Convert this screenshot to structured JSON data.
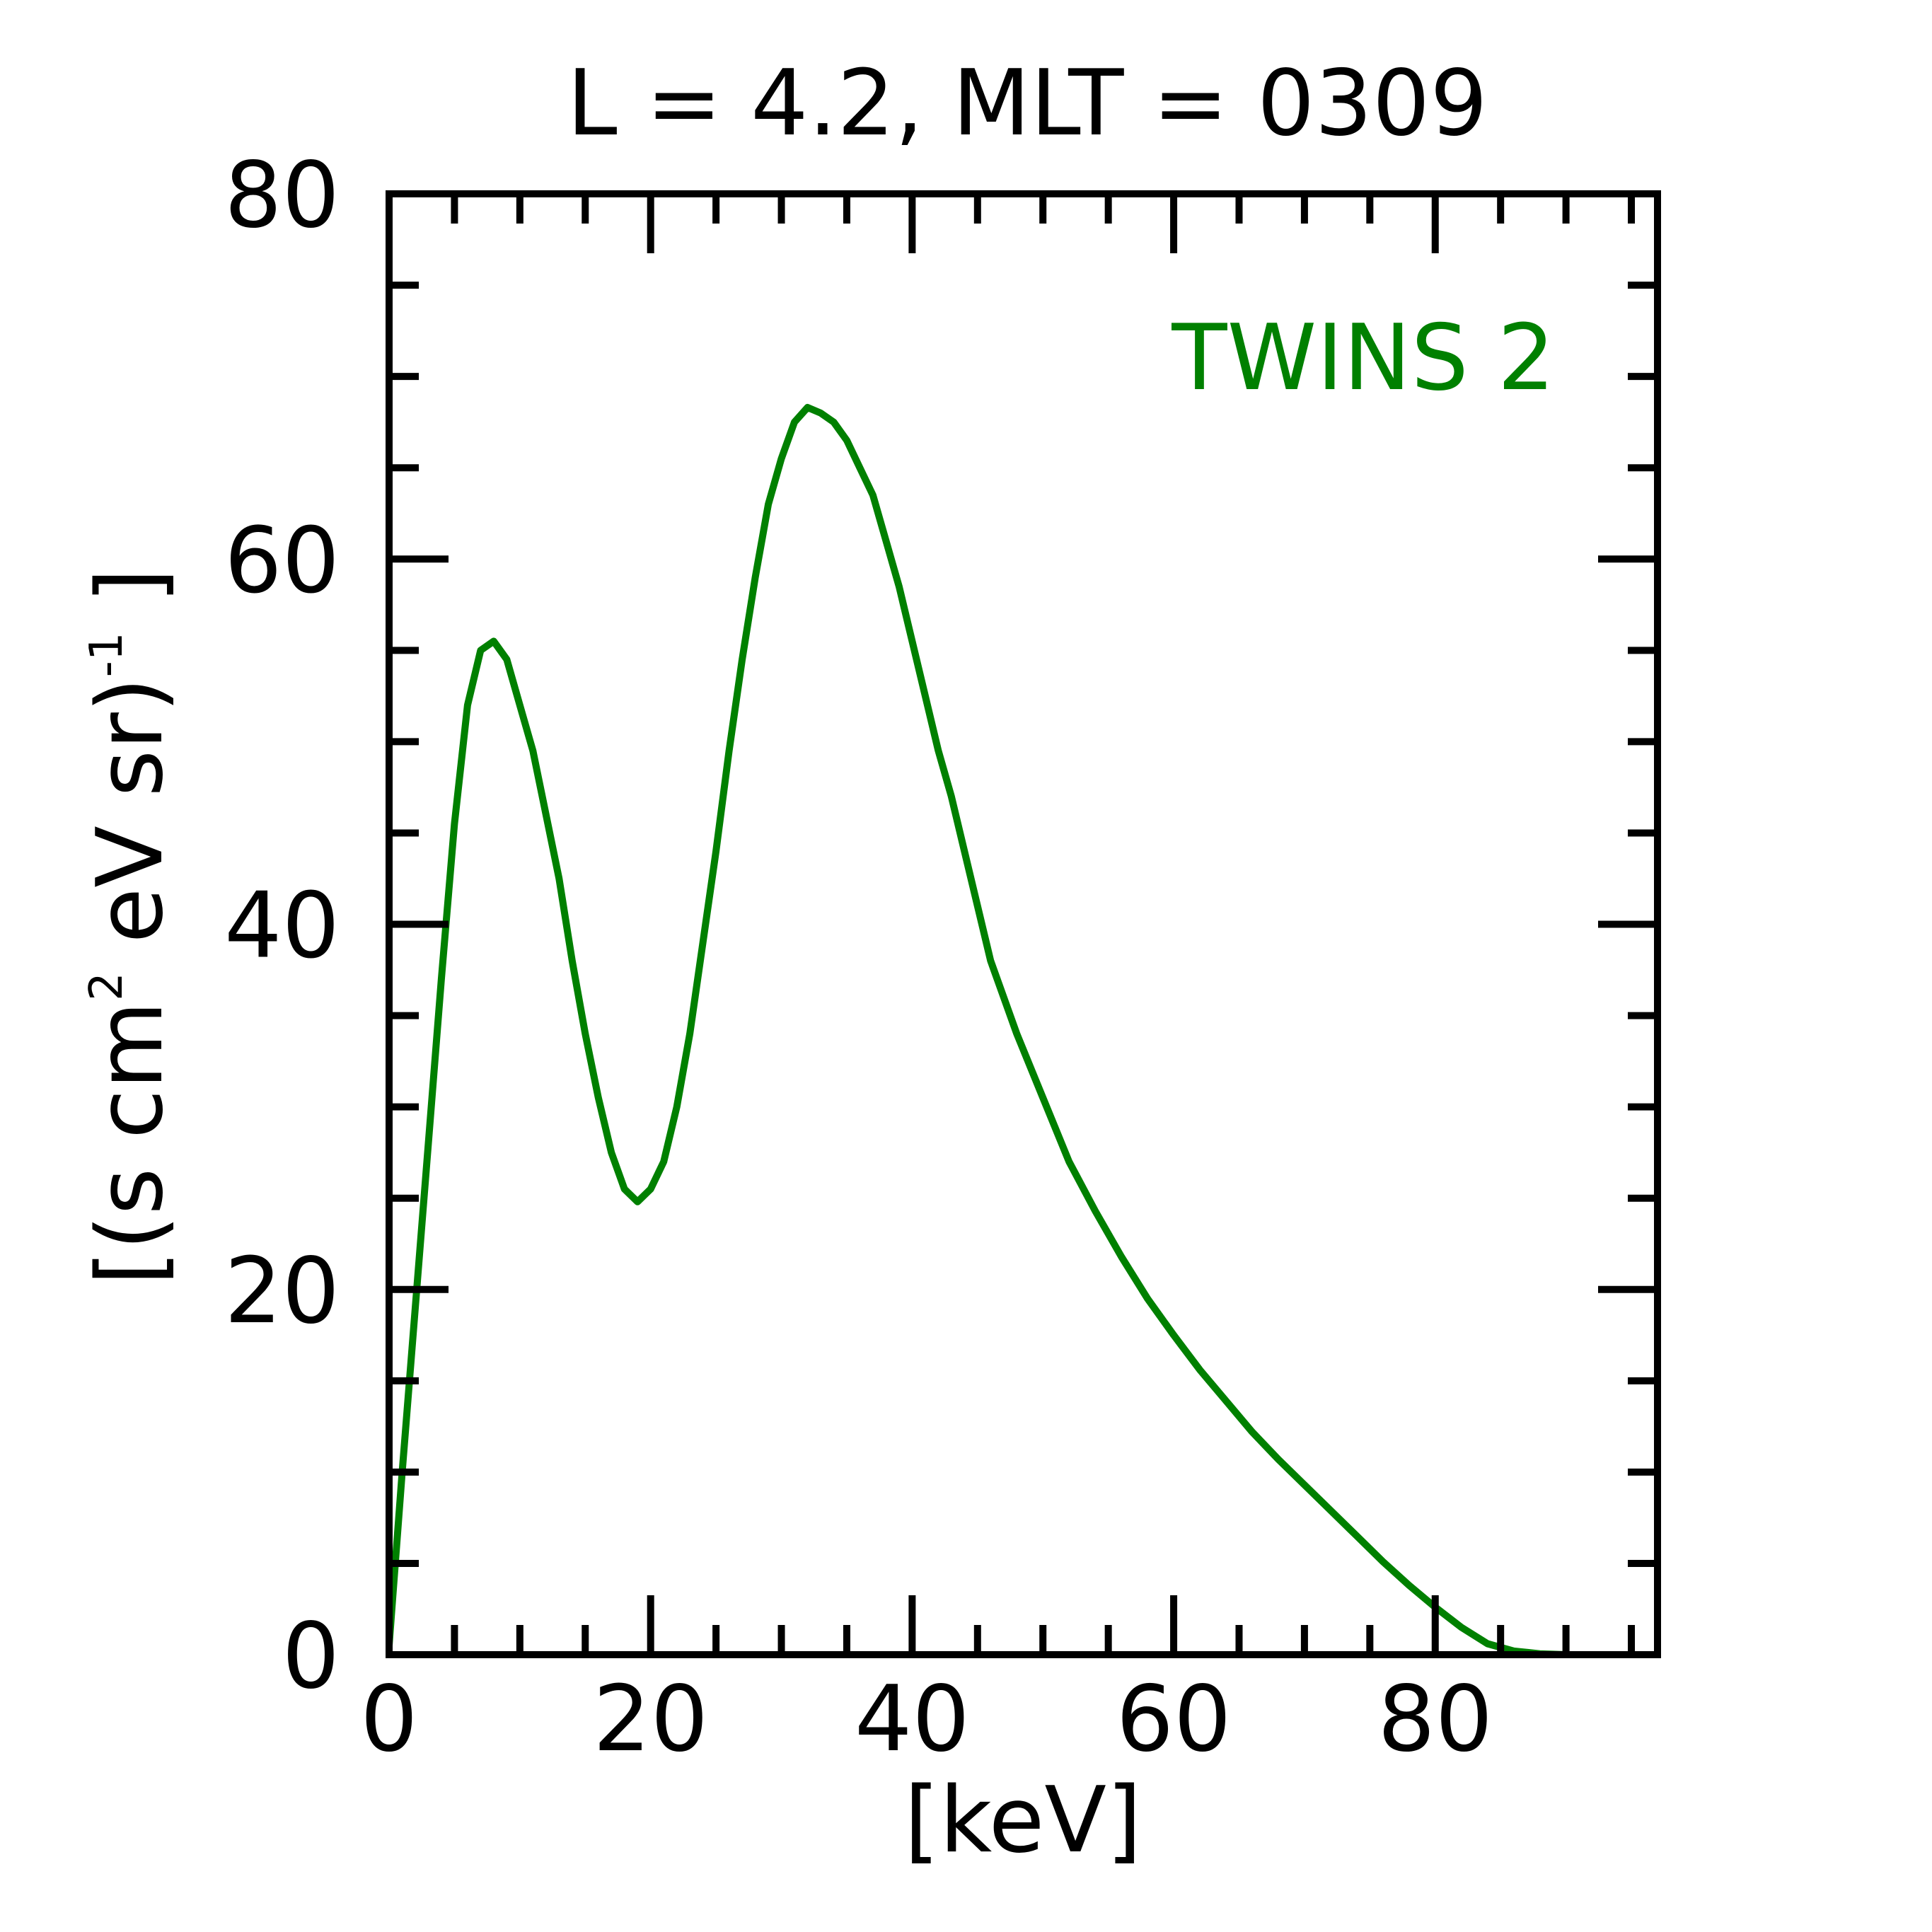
{
  "chart_data": {
    "type": "line",
    "title": "L =  4.2, MLT = 0309",
    "xlabel": "[keV]",
    "ylabel": {
      "prefix": "[(s cm",
      "sup1": "2",
      "middle": " eV sr)",
      "sup2": "-1",
      "suffix": " ]"
    },
    "xlim": [
      0,
      97
    ],
    "ylim": [
      0,
      80
    ],
    "x_ticks": [
      0,
      20,
      40,
      60,
      80
    ],
    "x_tick_labels": [
      "0",
      "20",
      "40",
      "60",
      "80"
    ],
    "y_ticks": [
      0,
      20,
      40,
      60,
      80
    ],
    "y_tick_labels": [
      "0",
      "20",
      "40",
      "60",
      "80"
    ],
    "x_minor_step": 5,
    "y_minor_step": 5,
    "legend_placement": "top-right",
    "series": [
      {
        "name": "TWINS 2",
        "color": "#008000",
        "x": [
          0,
          1,
          2,
          3,
          4,
          5,
          6,
          7,
          8,
          9,
          10,
          11,
          12,
          13,
          14,
          15,
          16,
          17,
          18,
          19,
          20,
          21,
          22,
          23,
          24,
          25,
          26,
          27,
          28,
          29,
          30,
          31,
          32,
          33,
          34,
          35,
          36,
          37,
          38,
          39,
          40,
          41,
          42,
          43,
          44,
          45,
          46,
          48,
          50,
          52,
          54,
          56,
          58,
          60,
          62,
          64,
          66,
          68,
          70,
          72,
          74,
          76,
          78,
          80,
          82,
          84,
          86,
          88,
          90,
          92,
          94,
          96,
          97
        ],
        "values": [
          0.5,
          10,
          19,
          28,
          37,
          45.5,
          52,
          55,
          55.5,
          54.5,
          52,
          49.5,
          46,
          42.5,
          38,
          34,
          30.5,
          27.5,
          25.5,
          24.8,
          25.5,
          27,
          30,
          34,
          39,
          44,
          49.5,
          54.5,
          59,
          63,
          65.5,
          67.5,
          68.3,
          68,
          67.5,
          66.5,
          65,
          63.5,
          61,
          58.5,
          55.5,
          52.5,
          49.5,
          47,
          44,
          41,
          38,
          34,
          30.5,
          27,
          24.3,
          21.8,
          19.5,
          17.5,
          15.6,
          13.9,
          12.2,
          10.7,
          9.3,
          7.9,
          6.5,
          5.1,
          3.8,
          2.6,
          1.5,
          0.6,
          0.2,
          0.05,
          0,
          0,
          0,
          0,
          0
        ]
      }
    ]
  }
}
